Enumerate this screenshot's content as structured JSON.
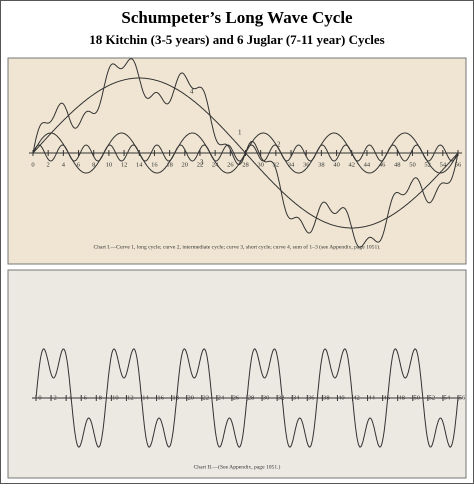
{
  "header": {
    "title": "Schumpeter’s Long Wave Cycle",
    "subtitle": "18 Kitchin (3-5 years) and 6 Juglar (7-11 year) Cycles"
  },
  "charts": [
    {
      "caption": "Chart I.—Curve 1, long cycle; curve 2, intermediate cycle; curve 3, short cycle; curve 4, sum of 1–3 (see Appendix, page 1051).",
      "curve_labels": [
        "1",
        "2",
        "3",
        "4"
      ],
      "xticks": [
        0,
        2,
        4,
        6,
        8,
        10,
        12,
        14,
        16,
        18,
        20,
        22,
        24,
        26,
        28,
        30,
        32,
        34,
        36,
        38,
        40,
        42,
        44,
        46,
        48,
        50,
        52,
        54,
        56
      ]
    },
    {
      "caption": "Chart II.—(See Appendix, page 1051.)",
      "xticks": [
        0,
        2,
        4,
        6,
        8,
        10,
        12,
        14,
        16,
        18,
        20,
        22,
        24,
        26,
        28,
        30,
        32,
        34,
        36,
        38,
        40,
        42,
        44,
        46,
        48,
        50,
        52,
        54,
        56
      ]
    }
  ]
}
